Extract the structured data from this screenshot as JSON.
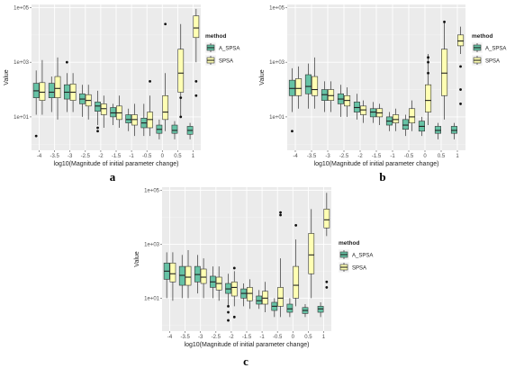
{
  "colors": {
    "A_SPSA": "#66c2a5",
    "SPSA": "#ffffb3"
  },
  "chart_data": [
    {
      "type": "box",
      "panel_label": "a",
      "xlabel": "log10(Magnitude of initial parameter change)",
      "ylabel": "Value",
      "categories": [
        "-4",
        "-3.5",
        "-3",
        "-2.5",
        "-2",
        "-1.5",
        "-1",
        "-0.5",
        "0",
        "0.5",
        "1"
      ],
      "y_log": true,
      "ylim": [
        0.6,
        130000
      ],
      "y_ticks": [
        {
          "value": 10,
          "label": "1e+01"
        },
        {
          "value": 1000,
          "label": "1e+03"
        },
        {
          "value": 100000,
          "label": "1e+05"
        }
      ],
      "legend": {
        "title": "method",
        "entries": [
          "A_SPSA",
          "SPSA"
        ],
        "position": "right"
      },
      "series": [
        {
          "name": "A_SPSA",
          "boxes": [
            {
              "lo": 12,
              "q1": 50,
              "med": 90,
              "q3": 170,
              "hi": 500,
              "out": [
                2
              ]
            },
            {
              "lo": 15,
              "q1": 50,
              "med": 80,
              "q3": 170,
              "hi": 300,
              "out": []
            },
            {
              "lo": 15,
              "q1": 45,
              "med": 80,
              "q3": 150,
              "hi": 400,
              "out": [
                1000
              ]
            },
            {
              "lo": 10,
              "q1": 30,
              "med": 45,
              "q3": 70,
              "hi": 150,
              "out": []
            },
            {
              "lo": 5,
              "q1": 16,
              "med": 25,
              "q3": 35,
              "hi": 90,
              "out": [
                4,
                3
              ]
            },
            {
              "lo": 5,
              "q1": 10,
              "med": 14,
              "q3": 22,
              "hi": 30,
              "out": []
            },
            {
              "lo": 3,
              "q1": 6,
              "med": 8,
              "q3": 12,
              "hi": 20,
              "out": []
            },
            {
              "lo": 2,
              "q1": 4,
              "med": 6,
              "q3": 9,
              "hi": 30,
              "out": []
            },
            {
              "lo": 1.5,
              "q1": 2.5,
              "med": 3.5,
              "q3": 5,
              "hi": 8,
              "out": []
            },
            {
              "lo": 1.5,
              "q1": 2.5,
              "med": 3.2,
              "q3": 5,
              "hi": 7,
              "out": []
            },
            {
              "lo": 1.5,
              "q1": 2.3,
              "med": 3.2,
              "q3": 4.5,
              "hi": 6,
              "out": []
            }
          ]
        },
        {
          "name": "SPSA",
          "boxes": [
            {
              "lo": 12,
              "q1": 40,
              "med": 80,
              "q3": 180,
              "hi": 1200,
              "out": []
            },
            {
              "lo": 8,
              "q1": 50,
              "med": 110,
              "q3": 300,
              "hi": 1500,
              "out": []
            },
            {
              "lo": 15,
              "q1": 40,
              "med": 80,
              "q3": 160,
              "hi": 400,
              "out": []
            },
            {
              "lo": 8,
              "q1": 25,
              "med": 40,
              "q3": 65,
              "hi": 150,
              "out": []
            },
            {
              "lo": 4,
              "q1": 12,
              "med": 20,
              "q3": 30,
              "hi": 60,
              "out": []
            },
            {
              "lo": 4,
              "q1": 8,
              "med": 14,
              "q3": 25,
              "hi": 60,
              "out": []
            },
            {
              "lo": 2,
              "q1": 5,
              "med": 8,
              "q3": 12,
              "hi": 30,
              "out": []
            },
            {
              "lo": 2,
              "q1": 4,
              "med": 8,
              "q3": 15,
              "hi": 60,
              "out": [
                200
              ]
            },
            {
              "lo": 3,
              "q1": 8,
              "med": 15,
              "q3": 60,
              "hi": 400,
              "out": [
                25000
              ]
            },
            {
              "lo": 10,
              "q1": 80,
              "med": 400,
              "q3": 3000,
              "hi": 25000,
              "out": [
                50,
                10
              ]
            },
            {
              "lo": 1000,
              "q1": 8000,
              "med": 18000,
              "q3": 50000,
              "hi": 90000,
              "out": [
                200,
                60
              ]
            }
          ]
        }
      ]
    },
    {
      "type": "box",
      "panel_label": "b",
      "xlabel": "log10(Magnitude of initial parameter change)",
      "ylabel": "Value",
      "categories": [
        "-4",
        "-3.5",
        "-3",
        "-2.5",
        "-2",
        "-1.5",
        "-1",
        "-0.5",
        "0",
        "0.5",
        "1"
      ],
      "y_log": true,
      "ylim": [
        0.6,
        130000
      ],
      "y_ticks": [
        {
          "value": 10,
          "label": "1e+01"
        },
        {
          "value": 1000,
          "label": "1e+03"
        },
        {
          "value": 100000,
          "label": "1e+05"
        }
      ],
      "legend": {
        "title": "method",
        "entries": [
          "A_SPSA",
          "SPSA"
        ],
        "position": "right"
      },
      "series": [
        {
          "name": "A_SPSA",
          "boxes": [
            {
              "lo": 15,
              "q1": 60,
              "med": 110,
              "q3": 220,
              "hi": 600,
              "out": [
                3
              ]
            },
            {
              "lo": 20,
              "q1": 70,
              "med": 130,
              "q3": 350,
              "hi": 900,
              "out": []
            },
            {
              "lo": 15,
              "q1": 40,
              "med": 65,
              "q3": 100,
              "hi": 200,
              "out": []
            },
            {
              "lo": 10,
              "q1": 30,
              "med": 45,
              "q3": 70,
              "hi": 150,
              "out": []
            },
            {
              "lo": 8,
              "q1": 15,
              "med": 22,
              "q3": 35,
              "hi": 70,
              "out": []
            },
            {
              "lo": 6,
              "q1": 10,
              "med": 15,
              "q3": 20,
              "hi": 35,
              "out": []
            },
            {
              "lo": 3,
              "q1": 5,
              "med": 7,
              "q3": 10,
              "hi": 15,
              "out": []
            },
            {
              "lo": 2,
              "q1": 3.5,
              "med": 5,
              "q3": 8,
              "hi": 12,
              "out": []
            },
            {
              "lo": 2,
              "q1": 3,
              "med": 4.5,
              "q3": 7,
              "hi": 10,
              "out": []
            },
            {
              "lo": 1.5,
              "q1": 2.5,
              "med": 3.2,
              "q3": 4.5,
              "hi": 6,
              "out": []
            },
            {
              "lo": 1.5,
              "q1": 2.5,
              "med": 3.2,
              "q3": 4.5,
              "hi": 6,
              "out": []
            }
          ]
        },
        {
          "name": "SPSA",
          "boxes": [
            {
              "lo": 20,
              "q1": 60,
              "med": 110,
              "q3": 250,
              "hi": 700,
              "out": []
            },
            {
              "lo": 20,
              "q1": 60,
              "med": 100,
              "q3": 300,
              "hi": 1500,
              "out": []
            },
            {
              "lo": 15,
              "q1": 40,
              "med": 60,
              "q3": 100,
              "hi": 200,
              "out": []
            },
            {
              "lo": 10,
              "q1": 25,
              "med": 40,
              "q3": 60,
              "hi": 120,
              "out": []
            },
            {
              "lo": 6,
              "q1": 12,
              "med": 18,
              "q3": 25,
              "hi": 40,
              "out": []
            },
            {
              "lo": 5,
              "q1": 10,
              "med": 14,
              "q3": 20,
              "hi": 30,
              "out": []
            },
            {
              "lo": 3,
              "q1": 6,
              "med": 8,
              "q3": 12,
              "hi": 20,
              "out": []
            },
            {
              "lo": 3,
              "q1": 6,
              "med": 10,
              "q3": 20,
              "hi": 40,
              "out": []
            },
            {
              "lo": 5,
              "q1": 15,
              "med": 40,
              "q3": 150,
              "hi": 2000,
              "out": [
                400,
                1000,
                1500
              ]
            },
            {
              "lo": 8,
              "q1": 60,
              "med": 400,
              "q3": 3000,
              "hi": 30000,
              "out": [
                30000
              ]
            },
            {
              "lo": 2000,
              "q1": 4000,
              "med": 6000,
              "q3": 10000,
              "hi": 20000,
              "out": [
                30,
                100,
                700
              ]
            }
          ]
        }
      ]
    },
    {
      "type": "box",
      "panel_label": "c",
      "xlabel": "log10(Magnitude of initial parameter change)",
      "ylabel": "Value",
      "categories": [
        "-4",
        "-3.5",
        "-3",
        "-2.5",
        "-2",
        "-1.5",
        "-1",
        "-0.5",
        "0",
        "0.5",
        "1"
      ],
      "y_log": true,
      "ylim": [
        0.6,
        130000
      ],
      "y_ticks": [
        {
          "value": 10,
          "label": "1e+01"
        },
        {
          "value": 1000,
          "label": "1e+03"
        },
        {
          "value": 100000,
          "label": "1e+05"
        }
      ],
      "legend": {
        "title": "method",
        "entries": [
          "A_SPSA",
          "SPSA"
        ],
        "position": "right"
      },
      "series": [
        {
          "name": "A_SPSA",
          "boxes": [
            {
              "lo": 10,
              "q1": 50,
              "med": 100,
              "q3": 200,
              "hi": 500,
              "out": []
            },
            {
              "lo": 10,
              "q1": 30,
              "med": 70,
              "q3": 150,
              "hi": 400,
              "out": []
            },
            {
              "lo": 15,
              "q1": 40,
              "med": 75,
              "q3": 150,
              "hi": 400,
              "out": []
            },
            {
              "lo": 10,
              "q1": 25,
              "med": 40,
              "q3": 65,
              "hi": 150,
              "out": []
            },
            {
              "lo": 5,
              "q1": 15,
              "med": 22,
              "q3": 35,
              "hi": 80,
              "out": [
                3,
                5,
                1.5
              ]
            },
            {
              "lo": 5,
              "q1": 10,
              "med": 15,
              "q3": 22,
              "hi": 35,
              "out": []
            },
            {
              "lo": 4,
              "q1": 6,
              "med": 8,
              "q3": 12,
              "hi": 20,
              "out": []
            },
            {
              "lo": 2,
              "q1": 3.5,
              "med": 5,
              "q3": 7,
              "hi": 10,
              "out": []
            },
            {
              "lo": 2,
              "q1": 3,
              "med": 4,
              "q3": 6,
              "hi": 10,
              "out": []
            },
            {
              "lo": 2,
              "q1": 2.7,
              "med": 3.5,
              "q3": 4.5,
              "hi": 6,
              "out": []
            },
            {
              "lo": 2,
              "q1": 3,
              "med": 4,
              "q3": 5,
              "hi": 7,
              "out": []
            }
          ]
        },
        {
          "name": "SPSA",
          "boxes": [
            {
              "lo": 8,
              "q1": 40,
              "med": 80,
              "q3": 200,
              "hi": 500,
              "out": []
            },
            {
              "lo": 10,
              "q1": 30,
              "med": 60,
              "q3": 150,
              "hi": 600,
              "out": []
            },
            {
              "lo": 10,
              "q1": 35,
              "med": 60,
              "q3": 120,
              "hi": 300,
              "out": []
            },
            {
              "lo": 8,
              "q1": 20,
              "med": 35,
              "q3": 60,
              "hi": 150,
              "out": []
            },
            {
              "lo": 5,
              "q1": 12,
              "med": 25,
              "q3": 40,
              "hi": 100,
              "out": [
                130,
                2
              ]
            },
            {
              "lo": 4,
              "q1": 8,
              "med": 15,
              "q3": 25,
              "hi": 50,
              "out": []
            },
            {
              "lo": 3,
              "q1": 6,
              "med": 10,
              "q3": 18,
              "hi": 40,
              "out": []
            },
            {
              "lo": 2,
              "q1": 5,
              "med": 10,
              "q3": 25,
              "hi": 300,
              "out": [
                12000,
                15000
              ]
            },
            {
              "lo": 5,
              "q1": 10,
              "med": 30,
              "q3": 150,
              "hi": 1500,
              "out": [
                5000
              ]
            },
            {
              "lo": 10,
              "q1": 80,
              "med": 400,
              "q3": 2500,
              "hi": 20000,
              "out": []
            },
            {
              "lo": 2000,
              "q1": 4000,
              "med": 8000,
              "q3": 20000,
              "hi": 80000,
              "out": [
                40,
                25
              ]
            }
          ]
        }
      ]
    }
  ]
}
